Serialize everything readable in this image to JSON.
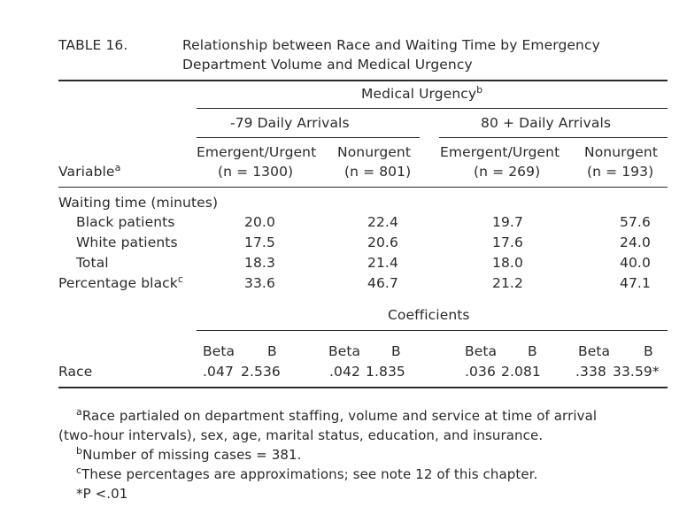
{
  "table": {
    "label": "TABLE 16.",
    "title_line1": "Relationship between Race and Waiting Time by Emergency",
    "title_line2": "Department Volume and Medical Urgency",
    "header": {
      "span_label": "Medical Urgency",
      "span_note": "b",
      "group1": "-79 Daily Arrivals",
      "group2": "80 + Daily Arrivals",
      "col_emergent": "Emergent/Urgent",
      "col_nonurgent": "Nonurgent",
      "n1": "(n = 1300)",
      "n2": "(n = 801)",
      "n3": "(n = 269)",
      "n4": "(n = 193)",
      "variable": "Variable",
      "variable_note": "a"
    },
    "section_waiting": "Waiting time (minutes)",
    "rows": [
      {
        "label": "Black patients",
        "v": [
          "20.0",
          "22.4",
          "19.7",
          "57.6"
        ]
      },
      {
        "label": "White patients",
        "v": [
          "17.5",
          "20.6",
          "17.6",
          "24.0"
        ]
      },
      {
        "label": "Total",
        "v": [
          "18.3",
          "21.4",
          "18.0",
          "40.0"
        ]
      },
      {
        "label": "Percentage black",
        "note": "c",
        "v": [
          "33.6",
          "46.7",
          "21.2",
          "47.1"
        ]
      }
    ],
    "coefficients_label": "Coefficients",
    "beta_label": "Beta",
    "b_label": "B",
    "race_row": {
      "label": "Race",
      "values": [
        ".047",
        "2.536",
        ".042",
        "1.835",
        ".036",
        "2.081",
        ".338",
        "33.59*"
      ]
    }
  },
  "footnotes": {
    "a_mark": "a",
    "a_line1": "Race partialed on department staffing, volume and service at time of arrival",
    "a_line2": "(two-hour intervals), sex, age, marital status, education, and insurance.",
    "b_mark": "b",
    "b_text": "Number of missing cases = 381.",
    "c_mark": "c",
    "c_text": "These percentages are approximations; see note 12 of this chapter.",
    "p_text": "*P <.01"
  }
}
